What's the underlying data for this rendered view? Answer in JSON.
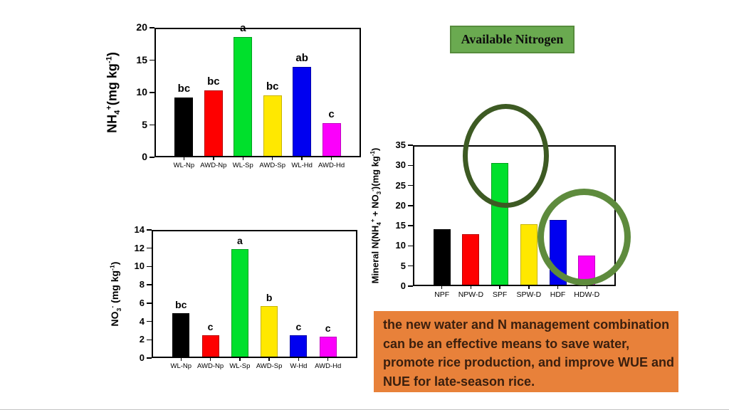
{
  "title_box": {
    "label": "Available Nitrogen",
    "bg_color": "#6aaa50",
    "border_color": "#568c3c",
    "text_color": "#0d0d0d"
  },
  "note_box": {
    "bg_color": "#e8813a",
    "text_color": "#3a1f0e",
    "lines": [
      "the new water and N management combination",
      "can be an effective means to save water,",
      "promote rice production, and improve WUE and",
      "NUE for late-season rice."
    ]
  },
  "annotations": {
    "circles": [
      {
        "name": "spf-highlight-circle",
        "color": "#3d5a23"
      },
      {
        "name": "hdf-hdwd-highlight-circle",
        "color": "#5e8b3d"
      }
    ]
  },
  "chart_data": [
    {
      "name": "nh4-chart",
      "type": "bar",
      "ylabel": "NH_{4}^{+}(mg kg^{-1})",
      "xlabel": "",
      "ylim": [
        0,
        20
      ],
      "yticks": [
        0,
        5,
        10,
        15,
        20
      ],
      "grid": false,
      "legend": "none",
      "categories": [
        "WL-Np",
        "AWD-Np",
        "WL-Sp",
        "AWD-Sp",
        "WL-Hd",
        "AWD-Hd"
      ],
      "values": [
        9.2,
        10.3,
        18.6,
        9.6,
        14.0,
        5.3
      ],
      "sig_letters": [
        "bc",
        "bc",
        "a",
        "bc",
        "ab",
        "c"
      ],
      "bar_colors": [
        "#000000",
        "#fe0000",
        "#00e02c",
        "#ffe800",
        "#0000f0",
        "#fb00fb"
      ],
      "bar_border_colors": [
        "#000000",
        "#b80000",
        "#00a01e",
        "#c8b400",
        "#0000a8",
        "#c000c0"
      ]
    },
    {
      "name": "no3-chart",
      "type": "bar",
      "ylabel": "NO_{3}^{-} (mg kg^{-1})",
      "xlabel": "",
      "ylim": [
        0,
        14
      ],
      "yticks": [
        0,
        2,
        4,
        6,
        8,
        10,
        12,
        14
      ],
      "grid": false,
      "legend": "none",
      "categories": [
        "WL-Np",
        "AWD-Np",
        "WL-Sp",
        "AWD-Sp",
        "W-Hd",
        "AWD-Hd"
      ],
      "values": [
        4.9,
        2.5,
        11.9,
        5.7,
        2.5,
        2.3
      ],
      "sig_letters": [
        "bc",
        "c",
        "a",
        "b",
        "c",
        "c"
      ],
      "bar_colors": [
        "#000000",
        "#fe0000",
        "#00e02c",
        "#ffe800",
        "#0000f0",
        "#fb00fb"
      ],
      "bar_border_colors": [
        "#000000",
        "#b80000",
        "#00a01e",
        "#c8b400",
        "#0000a8",
        "#c000c0"
      ]
    },
    {
      "name": "mineral-n-chart",
      "type": "bar",
      "ylabel": "Mineral N(NH_{4}^{+} + NO_{3}^{-})(mg kg^{-1})",
      "xlabel": "",
      "ylim": [
        0,
        35
      ],
      "yticks": [
        0,
        5,
        10,
        15,
        20,
        25,
        30,
        35
      ],
      "grid": false,
      "legend": "none",
      "categories": [
        "NPF",
        "NPW-D",
        "SPF",
        "SPW-D",
        "HDF",
        "HDW-D"
      ],
      "values": [
        14.2,
        12.9,
        30.5,
        15.3,
        16.5,
        7.6
      ],
      "sig_letters": [
        "",
        "",
        "",
        "",
        "",
        ""
      ],
      "bar_colors": [
        "#000000",
        "#fe0000",
        "#00e02c",
        "#ffe800",
        "#0000f0",
        "#fb00fb"
      ],
      "bar_border_colors": [
        "#000000",
        "#b80000",
        "#00a01e",
        "#c8b400",
        "#0000a8",
        "#c000c0"
      ]
    }
  ]
}
